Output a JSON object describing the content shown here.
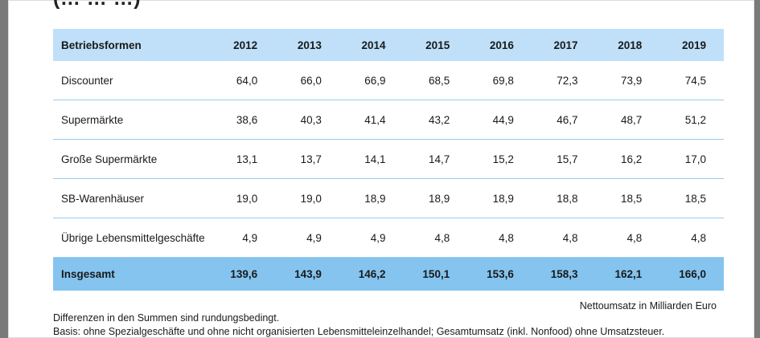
{
  "title_fragment": "(… … …)",
  "header": {
    "label": "Betriebsformen",
    "years": [
      "2012",
      "2013",
      "2014",
      "2015",
      "2016",
      "2017",
      "2018",
      "2019"
    ]
  },
  "rows": [
    {
      "label": "Discounter",
      "values": [
        "64,0",
        "66,0",
        "66,9",
        "68,5",
        "69,8",
        "72,3",
        "73,9",
        "74,5"
      ]
    },
    {
      "label": "Supermärkte",
      "values": [
        "38,6",
        "40,3",
        "41,4",
        "43,2",
        "44,9",
        "46,7",
        "48,7",
        "51,2"
      ]
    },
    {
      "label": "Große Supermärkte",
      "values": [
        "13,1",
        "13,7",
        "14,1",
        "14,7",
        "15,2",
        "15,7",
        "16,2",
        "17,0"
      ]
    },
    {
      "label": "SB-Warenhäuser",
      "values": [
        "19,0",
        "19,0",
        "18,9",
        "18,9",
        "18,9",
        "18,8",
        "18,5",
        "18,5"
      ]
    },
    {
      "label": "Übrige Lebensmittelgeschäfte",
      "values": [
        "4,9",
        "4,9",
        "4,9",
        "4,8",
        "4,8",
        "4,8",
        "4,8",
        "4,8"
      ]
    }
  ],
  "total": {
    "label": "Insgesamt",
    "values": [
      "139,6",
      "143,9",
      "146,2",
      "150,1",
      "153,6",
      "158,3",
      "162,1",
      "166,0"
    ]
  },
  "unit_note": "Nettoumsatz in Milliarden Euro",
  "footnotes": [
    "Differenzen in den Summen sind rundungsbedingt.",
    "Basis: ohne Spezialgeschäfte und ohne nicht organisierten Lebensmitteleinzelhandel; Gesamtumsatz (inkl. Nonfood) ohne Umsatzsteuer."
  ]
}
